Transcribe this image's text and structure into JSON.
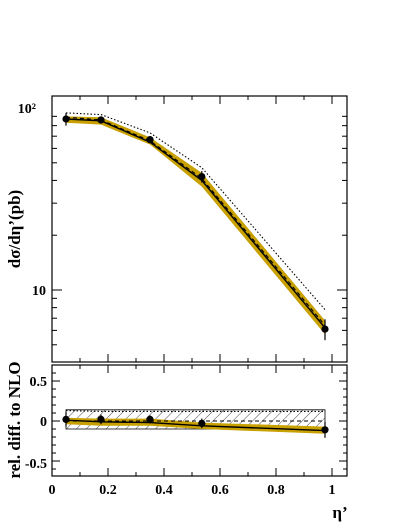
{
  "chart_data": [
    {
      "type": "line",
      "panel": "upper",
      "ylabel": "dσ/dη’(pb)",
      "yscale": "log",
      "ylim": [
        5.0,
        115
      ],
      "xlim": [
        0,
        1.05
      ],
      "yticklabels": [
        "10",
        "10²"
      ],
      "grid": false,
      "x": [
        0.05,
        0.175,
        0.35,
        0.535,
        0.975
      ],
      "series": [
        {
          "values": [
            87,
            86,
            67,
            42,
            6.1
          ],
          "errors": [
            7,
            4,
            3,
            3,
            0.8
          ],
          "style": "points",
          "color": "#000000"
        },
        {
          "values": [
            89,
            86,
            66,
            41,
            6.4
          ],
          "style": "dashed",
          "color": "#000000"
        },
        {
          "values": [
            94,
            92,
            73,
            47,
            7.8
          ],
          "style": "dotted",
          "color": "#000000"
        },
        {
          "upper": [
            90,
            89,
            69,
            44,
            6.8
          ],
          "lower": [
            83,
            81,
            63,
            37,
            5.7
          ],
          "style": "band",
          "color": "#c8a000"
        },
        {
          "values": [
            87,
            85,
            65,
            40,
            6.2
          ],
          "style": "solid",
          "color": "#000000"
        }
      ]
    },
    {
      "type": "line",
      "panel": "lower",
      "xlabel": "η’",
      "ylabel": "rel. diff. to NLO",
      "xlim": [
        0,
        1.05
      ],
      "ylim": [
        -0.65,
        0.72
      ],
      "xticklabels": [
        "0",
        "0.2",
        "0.4",
        "0.6",
        "0.8",
        "1"
      ],
      "yticklabels": [
        "0.5",
        "0",
        "-0.5"
      ],
      "x": [
        0.05,
        0.175,
        0.35,
        0.535,
        0.975
      ],
      "series": [
        {
          "values": [
            0.02,
            0.02,
            0.02,
            -0.03,
            -0.11
          ],
          "errors": [
            0.09,
            0.06,
            0.05,
            0.06,
            0.1
          ],
          "style": "points",
          "color": "#000000"
        },
        {
          "values": [
            0.0,
            0.0,
            0.0,
            0.0,
            0.0
          ],
          "style": "dashed",
          "color": "#000000"
        },
        {
          "upper": [
            0.14,
            0.14,
            0.14,
            0.14,
            0.14
          ],
          "lower": [
            -0.1,
            -0.1,
            -0.1,
            -0.1,
            -0.1
          ],
          "style": "hatched",
          "color": "#000000"
        },
        {
          "upper": [
            0.04,
            0.03,
            0.03,
            -0.02,
            -0.07
          ],
          "lower": [
            -0.04,
            -0.06,
            -0.06,
            -0.1,
            -0.16
          ],
          "style": "band",
          "color": "#c8a000"
        },
        {
          "values": [
            0.01,
            -0.01,
            -0.02,
            -0.06,
            -0.12
          ],
          "style": "solid",
          "color": "#000000"
        },
        {
          "values": [
            0.13,
            0.12,
            0.12,
            0.12,
            0.12
          ],
          "style": "dotted",
          "color": "#000000"
        }
      ]
    }
  ]
}
